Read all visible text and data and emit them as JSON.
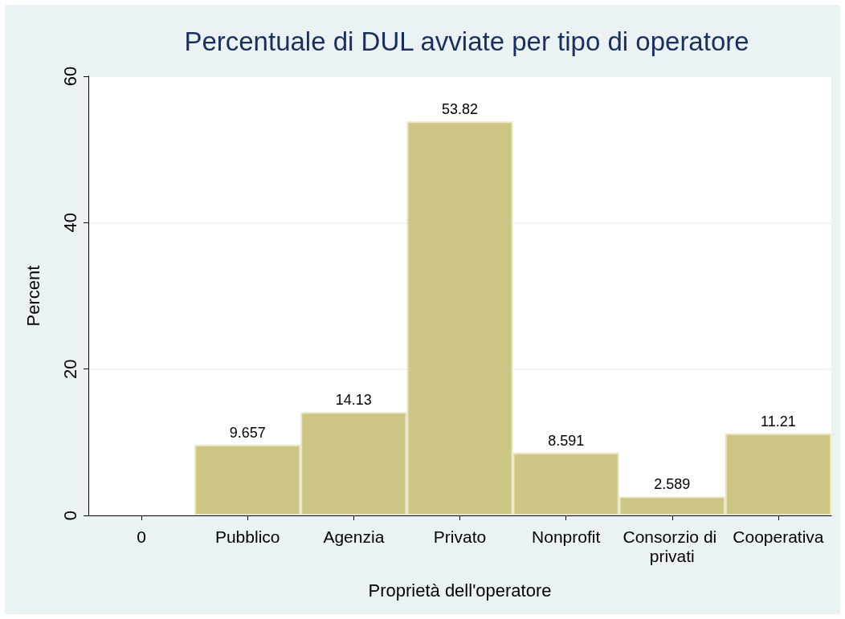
{
  "chart_data": {
    "type": "bar",
    "title": "Percentuale di DUL avviate per tipo di operatore",
    "xlabel": "Proprietà dell'operatore",
    "ylabel": "Percent",
    "categories": [
      "0",
      "Pubblico",
      "Agenzia",
      "Privato",
      "Nonprofit",
      "Consorzio di privati",
      "Cooperativa"
    ],
    "values": [
      null,
      9.657,
      14.13,
      53.82,
      8.591,
      2.589,
      11.21
    ],
    "color": "#cdc583",
    "ylim": [
      0,
      60
    ],
    "yticks": [
      0,
      20,
      40,
      60
    ],
    "grid": "y",
    "data_labels": true
  }
}
